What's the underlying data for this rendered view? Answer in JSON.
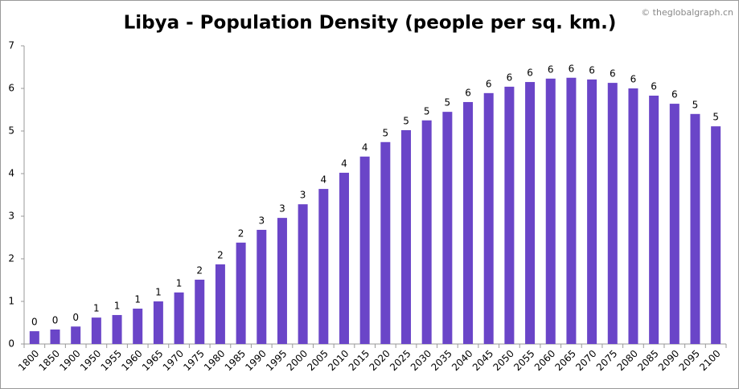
{
  "chart_data": {
    "type": "bar",
    "title": "Libya - Population Density (people per sq. km.)",
    "watermark": "© theglobalgraph.cn",
    "categories": [
      "1800",
      "1850",
      "1900",
      "1950",
      "1955",
      "1960",
      "1965",
      "1970",
      "1975",
      "1980",
      "1985",
      "1990",
      "1995",
      "2000",
      "2005",
      "2010",
      "2015",
      "2020",
      "2025",
      "2030",
      "2035",
      "2040",
      "2045",
      "2050",
      "2055",
      "2060",
      "2065",
      "2070",
      "2075",
      "2080",
      "2085",
      "2090",
      "2095",
      "2100"
    ],
    "values": [
      0.3,
      0.34,
      0.41,
      0.62,
      0.68,
      0.83,
      1.0,
      1.21,
      1.51,
      1.87,
      2.38,
      2.68,
      2.96,
      3.28,
      3.64,
      4.02,
      4.4,
      4.74,
      5.02,
      5.25,
      5.45,
      5.68,
      5.89,
      6.04,
      6.15,
      6.23,
      6.25,
      6.21,
      6.13,
      6.0,
      5.83,
      5.64,
      5.4,
      5.11
    ],
    "value_labels": [
      "0",
      "0",
      "0",
      "1",
      "1",
      "1",
      "1",
      "1",
      "2",
      "2",
      "2",
      "3",
      "3",
      "3",
      "4",
      "4",
      "4",
      "5",
      "5",
      "5",
      "5",
      "6",
      "6",
      "6",
      "6",
      "6",
      "6",
      "6",
      "6",
      "6",
      "6",
      "6",
      "5",
      "5"
    ],
    "color": "#6a45c8",
    "ylim": [
      0,
      7
    ],
    "yticks": [
      0,
      1,
      2,
      3,
      4,
      5,
      6,
      7
    ],
    "grid": false
  }
}
